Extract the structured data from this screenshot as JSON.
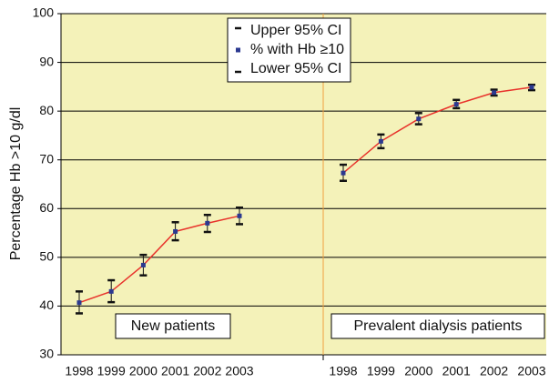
{
  "chart_data": {
    "type": "line",
    "y_label": "Percentage Hb >10 g/dl",
    "categories": [
      "1998",
      "1999",
      "2000",
      "2001",
      "2002",
      "2003",
      null,
      "1998",
      "1999",
      "2000",
      "2001",
      "2002",
      "2003"
    ],
    "series": [
      {
        "name": "New patients",
        "color": "#e8322b",
        "values": [
          40.7,
          43.0,
          48.4,
          55.3,
          57.0,
          58.5,
          null,
          null,
          null,
          null,
          null,
          null,
          null
        ],
        "upper": [
          43.0,
          45.3,
          50.5,
          57.2,
          58.7,
          60.2,
          null,
          null,
          null,
          null,
          null,
          null,
          null
        ],
        "lower": [
          38.5,
          40.8,
          46.3,
          53.5,
          55.2,
          56.8,
          null,
          null,
          null,
          null,
          null,
          null,
          null
        ]
      },
      {
        "name": "Prevalent dialysis patients",
        "color": "#e8322b",
        "values": [
          null,
          null,
          null,
          null,
          null,
          null,
          null,
          67.3,
          73.8,
          78.4,
          81.4,
          83.8,
          84.9
        ],
        "upper": [
          null,
          null,
          null,
          null,
          null,
          null,
          null,
          69.0,
          75.2,
          79.6,
          82.3,
          84.4,
          85.4
        ],
        "lower": [
          null,
          null,
          null,
          null,
          null,
          null,
          null,
          65.7,
          72.4,
          77.3,
          80.6,
          83.2,
          84.3
        ]
      }
    ],
    "legend": [
      "Upper 95% CI",
      "% with Hb ≥10",
      "Lower 95% CI"
    ],
    "marker_color": "#2b3990",
    "error_color": "#111111",
    "background": "#f4f2b9",
    "divider_color": "#f0a040",
    "ylim": [
      30,
      100
    ],
    "yticks": [
      30,
      40,
      50,
      60,
      70,
      80,
      90,
      100
    ],
    "grid": true
  }
}
